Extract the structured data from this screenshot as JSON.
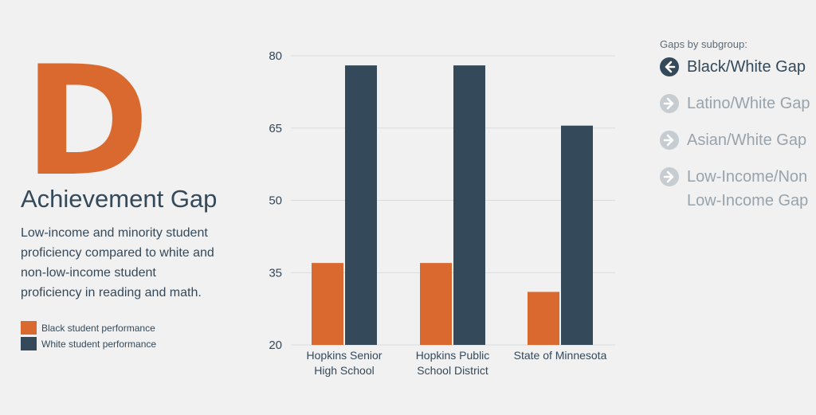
{
  "grade": "D",
  "title": "Achievement Gap",
  "description": "Low-income and minority student proficiency compared to white and non-low-income student proficiency in reading and math.",
  "legend": [
    {
      "label": "Black student performance",
      "color": "#d9692e"
    },
    {
      "label": "White student performance",
      "color": "#34495a"
    }
  ],
  "gaps": {
    "header": "Gaps by subgroup:",
    "items": [
      {
        "label": "Black/White Gap",
        "active": true,
        "icon": "arrow-left-icon"
      },
      {
        "label": "Latino/White Gap",
        "active": false,
        "icon": "arrow-right-icon"
      },
      {
        "label": "Asian/White Gap",
        "active": false,
        "icon": "arrow-right-icon"
      },
      {
        "label": "Low-Income/Non Low-Income Gap",
        "active": false,
        "icon": "arrow-right-icon"
      }
    ]
  },
  "chart_data": {
    "type": "bar",
    "categories": [
      [
        "Hopkins Senior",
        "High School"
      ],
      [
        "Hopkins Public",
        "School District"
      ],
      [
        "State of Minnesota"
      ]
    ],
    "series": [
      {
        "name": "Black student performance",
        "color": "#d9692e",
        "values": [
          37,
          37,
          31
        ]
      },
      {
        "name": "White student performance",
        "color": "#34495a",
        "values": [
          78,
          78,
          65.5
        ]
      }
    ],
    "yticks": [
      20,
      35,
      50,
      65,
      80
    ],
    "ylim": [
      20,
      80
    ],
    "grid": true
  }
}
